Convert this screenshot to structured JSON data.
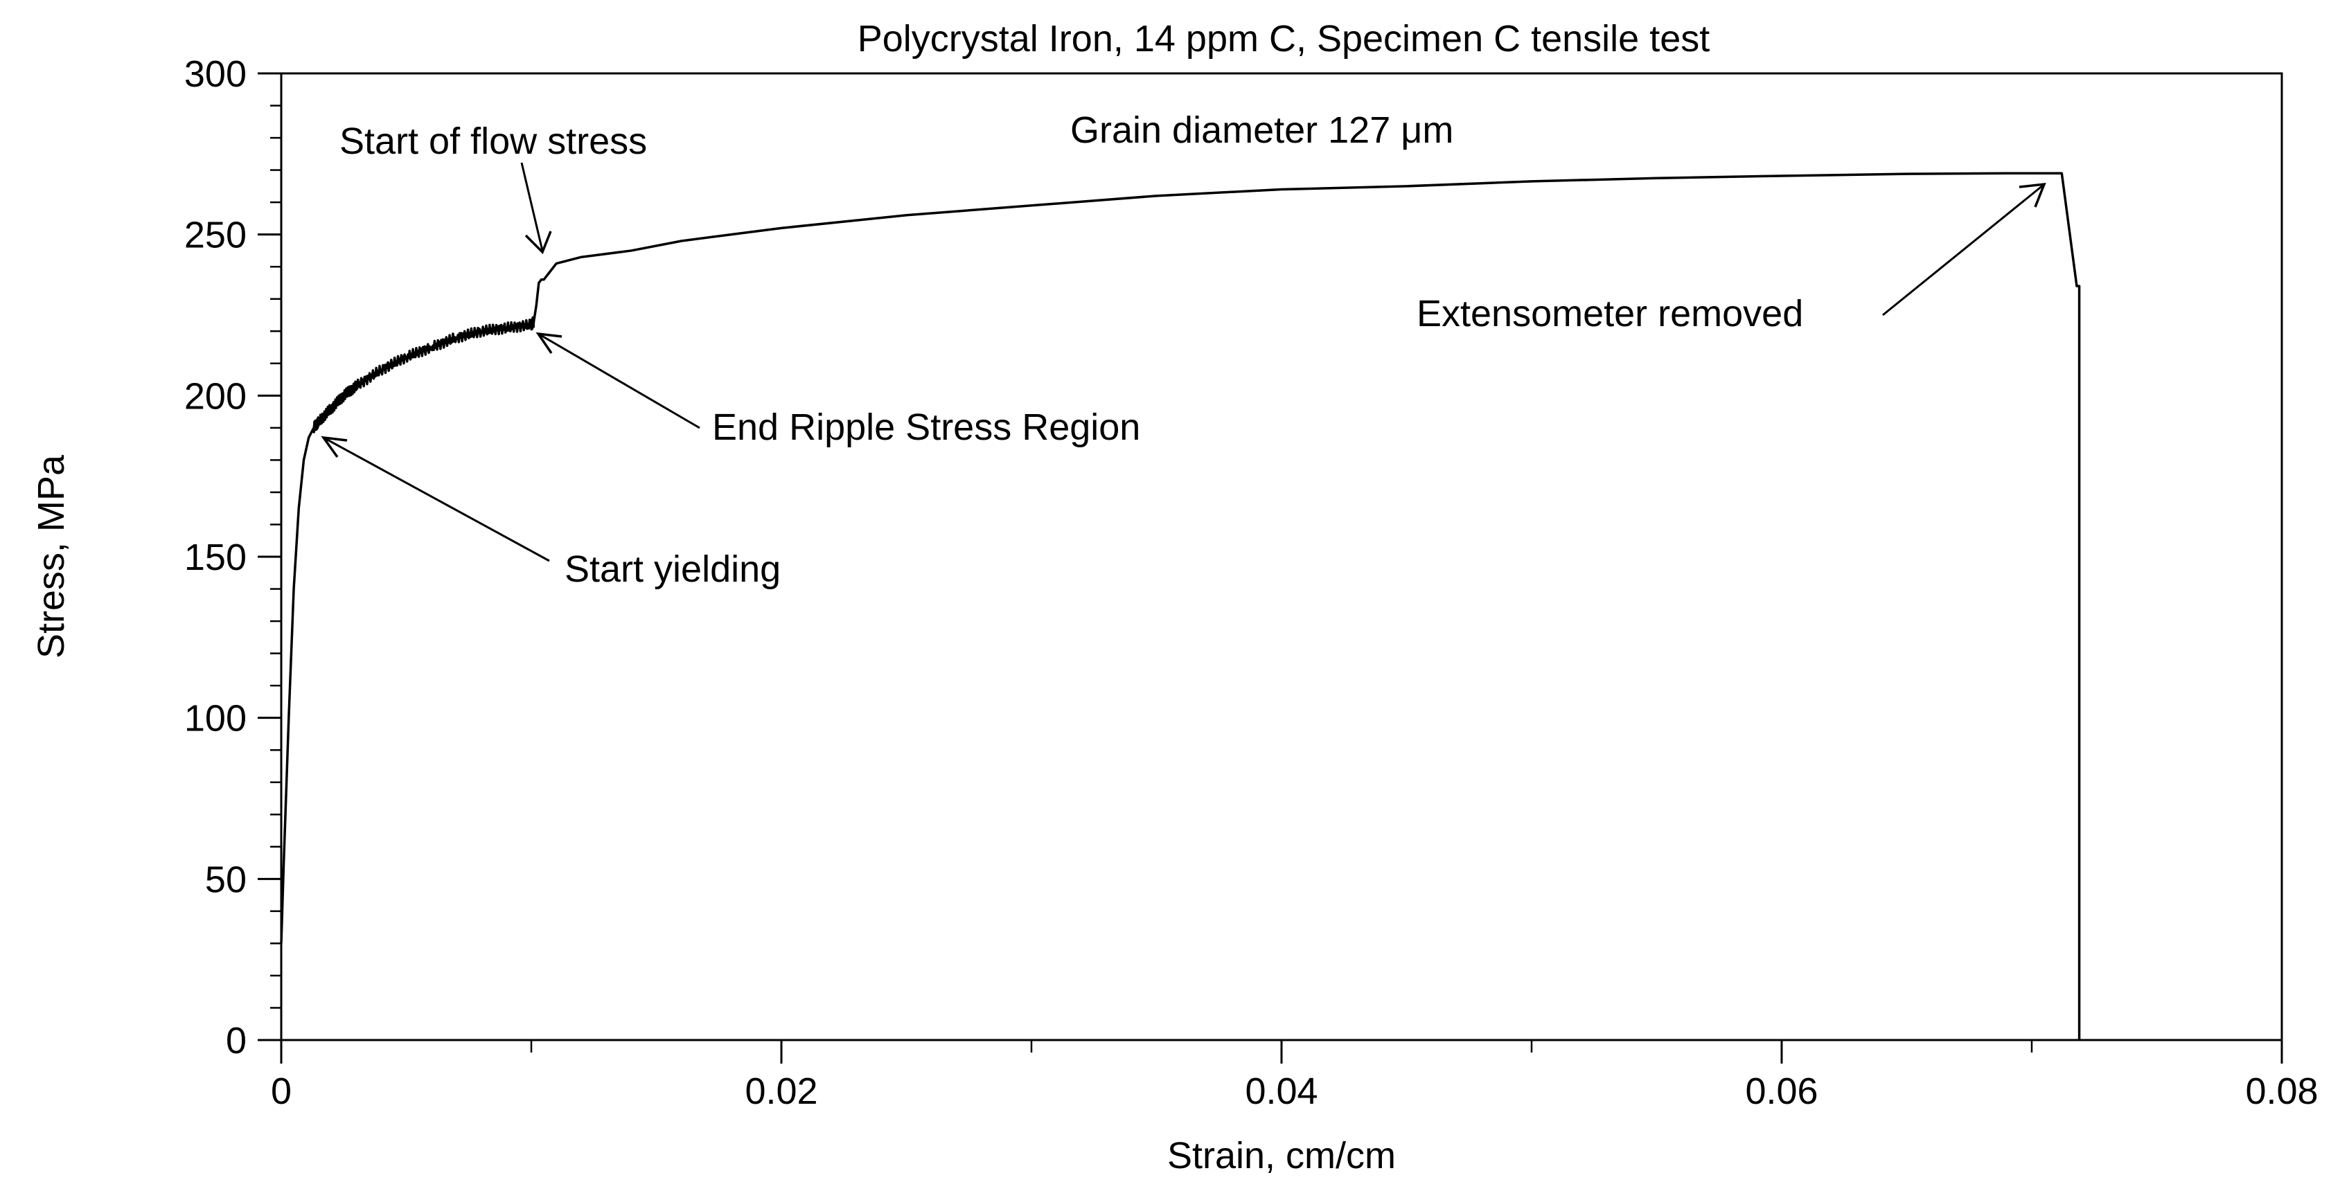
{
  "chart_data": {
    "type": "line",
    "title": "Polycrystal Iron, 14 ppm C, Specimen C tensile test",
    "xlabel": "Strain, cm/cm",
    "ylabel": "Stress, MPa",
    "xlim": [
      0,
      0.08
    ],
    "ylim": [
      0,
      300
    ],
    "x_ticks": [
      0,
      0.02,
      0.04,
      0.06,
      0.08
    ],
    "x_tick_labels": [
      "0",
      "0.02",
      "0.04",
      "0.06",
      "0.08"
    ],
    "x_minor_step": 0.01,
    "y_ticks": [
      0,
      50,
      100,
      150,
      200,
      250,
      300
    ],
    "y_tick_labels": [
      "0",
      "50",
      "100",
      "150",
      "200",
      "250",
      "300"
    ],
    "y_minor_step": 10,
    "grid": false,
    "legend": "none",
    "series": [
      {
        "name": "Specimen C",
        "x": [
          0,
          0.0001,
          0.0003,
          0.0005,
          0.0007,
          0.0009,
          0.0011,
          0.0013,
          0.0015,
          0.002,
          0.0025,
          0.003,
          0.004,
          0.005,
          0.006,
          0.007,
          0.008,
          0.009,
          0.01,
          0.0101,
          0.0102,
          0.0103,
          0.0104,
          0.0105,
          0.0107,
          0.011,
          0.012,
          0.014,
          0.016,
          0.018,
          0.02,
          0.025,
          0.03,
          0.035,
          0.04,
          0.045,
          0.05,
          0.055,
          0.06,
          0.065,
          0.069,
          0.0705,
          0.0712,
          0.0718,
          0.0719,
          0.0719
        ],
        "y": [
          30,
          55,
          100,
          140,
          165,
          180,
          187,
          190,
          192,
          196,
          200,
          203,
          208,
          212,
          215,
          218,
          220,
          221,
          222,
          223,
          228,
          235,
          236,
          236,
          238,
          241,
          243,
          245,
          248,
          250,
          252,
          256,
          259,
          262,
          264,
          265,
          266.5,
          267.5,
          268.2,
          268.8,
          269,
          269,
          269,
          234,
          234,
          0
        ]
      }
    ],
    "annotations": [
      {
        "text": "Start of flow stress",
        "x_data": 0.0105,
        "y_data": 240
      },
      {
        "text": "Grain diameter 127 μm"
      },
      {
        "text": "End Ripple Stress Region",
        "x_data": 0.0102,
        "y_data": 222
      },
      {
        "text": "Start yielding",
        "x_data": 0.0017,
        "y_data": 187
      },
      {
        "text": "Extensometer removed",
        "x_data": 0.0705,
        "y_data": 267
      }
    ]
  }
}
